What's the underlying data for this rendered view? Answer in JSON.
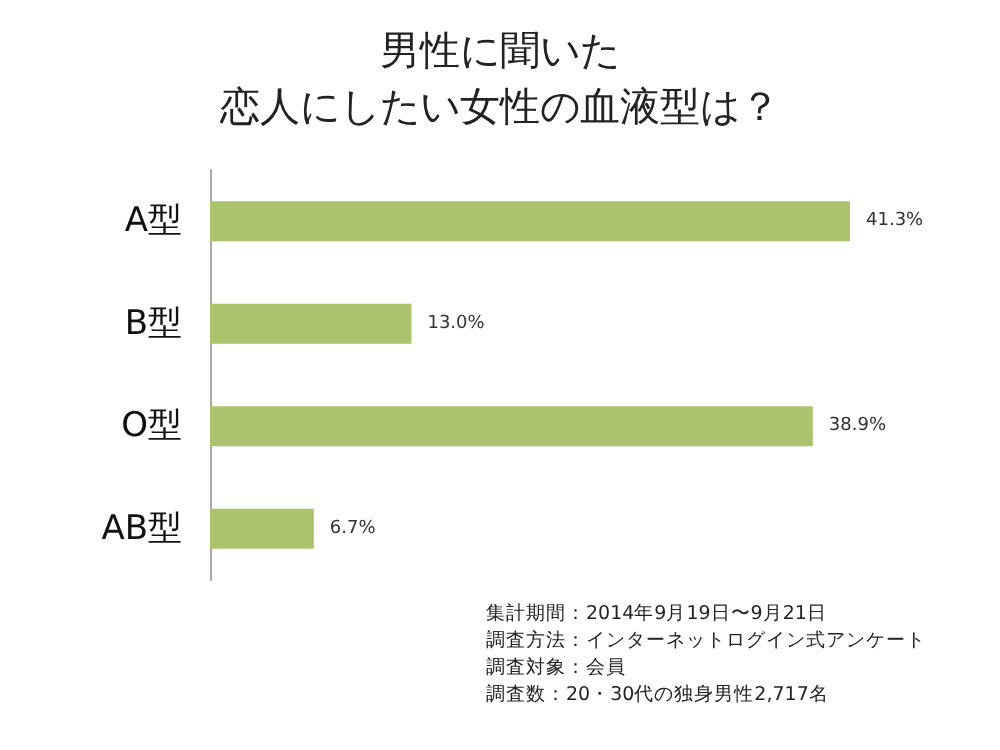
{
  "chart_data": {
    "type": "bar",
    "orientation": "horizontal",
    "title": "男性に聞いた",
    "subtitle": "恋人にしたい女性の血液型は？",
    "categories": [
      "A型",
      "B型",
      "O型",
      "AB型"
    ],
    "values": [
      41.3,
      13.0,
      38.9,
      6.7
    ],
    "value_labels": [
      "41.3%",
      "13.0%",
      "38.9%",
      "6.7%"
    ],
    "color": "#a9c46c",
    "grid": false,
    "annotations": [
      "集計期間：2014年9月19日〜9月21日",
      "調査方法：インターネットログイン式アンケート",
      "調査対象：会員",
      "調査数：20・30代の独身男性2,717名"
    ]
  }
}
